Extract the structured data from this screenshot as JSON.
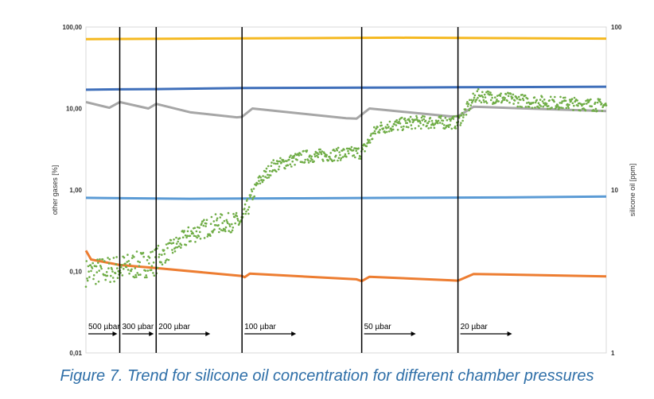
{
  "caption": "Figure 7. Trend for silicone oil concentration for different chamber pressures",
  "chart_data": {
    "type": "line",
    "y_left": {
      "label": "other gases [%]",
      "scale": "log",
      "range": [
        0.01,
        100
      ],
      "ticks": [
        "0,01",
        "0,10",
        "1,00",
        "10,00",
        "100,00"
      ]
    },
    "y_right": {
      "label": "silicone oil [ppm]",
      "scale": "log",
      "range": [
        1,
        100
      ],
      "ticks": [
        "1",
        "10",
        "100"
      ]
    },
    "grid": false,
    "legend": "none",
    "phases": [
      {
        "label": "500 µbar",
        "start": 0.0,
        "end": 0.065
      },
      {
        "label": "300 µbar",
        "start": 0.065,
        "end": 0.135
      },
      {
        "label": "200 µbar",
        "start": 0.135,
        "end": 0.3
      },
      {
        "label": "100 µbar",
        "start": 0.3,
        "end": 0.53
      },
      {
        "label": "50 µbar",
        "start": 0.53,
        "end": 0.715
      },
      {
        "label": "20 µbar",
        "start": 0.715,
        "end": 1.0
      }
    ],
    "series": [
      {
        "axis": "left",
        "color": "#f5b921",
        "points": [
          [
            0,
            71
          ],
          [
            0.2,
            72
          ],
          [
            0.4,
            73
          ],
          [
            0.6,
            74
          ],
          [
            0.8,
            73
          ],
          [
            1.0,
            72
          ]
        ]
      },
      {
        "axis": "left",
        "color": "#3f6fba",
        "points": [
          [
            0,
            17
          ],
          [
            0.065,
            17.2
          ],
          [
            0.135,
            17.3
          ],
          [
            0.3,
            17.8
          ],
          [
            0.53,
            18
          ],
          [
            0.715,
            18.2
          ],
          [
            1.0,
            18.5
          ]
        ]
      },
      {
        "axis": "left",
        "color": "#a6a6a6",
        "points": [
          [
            0,
            12
          ],
          [
            0.045,
            10.2
          ],
          [
            0.065,
            12
          ],
          [
            0.12,
            10
          ],
          [
            0.135,
            11.4
          ],
          [
            0.2,
            9
          ],
          [
            0.29,
            7.8
          ],
          [
            0.3,
            7.9
          ],
          [
            0.32,
            10
          ],
          [
            0.5,
            7.6
          ],
          [
            0.52,
            7.5
          ],
          [
            0.545,
            10
          ],
          [
            0.7,
            8
          ],
          [
            0.715,
            8
          ],
          [
            0.745,
            10.5
          ],
          [
            1.0,
            9.3
          ]
        ]
      },
      {
        "axis": "left",
        "color": "#5b9bd5",
        "points": [
          [
            0,
            0.8
          ],
          [
            0.2,
            0.78
          ],
          [
            0.4,
            0.79
          ],
          [
            0.6,
            0.8
          ],
          [
            0.8,
            0.81
          ],
          [
            1.0,
            0.83
          ]
        ]
      },
      {
        "axis": "left",
        "color": "#ed7d31",
        "points": [
          [
            0,
            0.18
          ],
          [
            0.01,
            0.14
          ],
          [
            0.065,
            0.12
          ],
          [
            0.135,
            0.11
          ],
          [
            0.3,
            0.088
          ],
          [
            0.305,
            0.085
          ],
          [
            0.315,
            0.094
          ],
          [
            0.52,
            0.08
          ],
          [
            0.53,
            0.076
          ],
          [
            0.545,
            0.086
          ],
          [
            0.7,
            0.078
          ],
          [
            0.715,
            0.077
          ],
          [
            0.745,
            0.093
          ],
          [
            1.0,
            0.087
          ]
        ]
      },
      {
        "axis": "right",
        "color": "#70ad47",
        "style": "scatter",
        "points": [
          [
            0,
            3.1
          ],
          [
            0.065,
            3.3
          ],
          [
            0.13,
            3.6
          ],
          [
            0.2,
            5.3
          ],
          [
            0.25,
            6.2
          ],
          [
            0.3,
            6.4
          ],
          [
            0.33,
            11
          ],
          [
            0.36,
            14
          ],
          [
            0.42,
            16
          ],
          [
            0.53,
            17
          ],
          [
            0.56,
            24
          ],
          [
            0.63,
            26
          ],
          [
            0.715,
            26
          ],
          [
            0.75,
            38
          ],
          [
            0.85,
            35
          ],
          [
            1.0,
            33
          ]
        ]
      }
    ]
  }
}
